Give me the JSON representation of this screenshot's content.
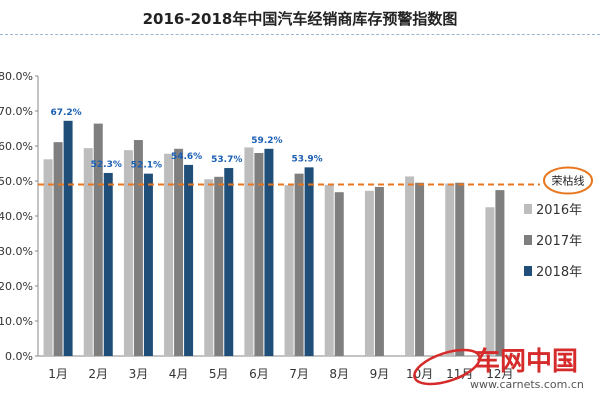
{
  "chart_data": {
    "type": "bar",
    "title": "2016-2018年中国汽车经销商库存预警指数图",
    "categories": [
      "1月",
      "2月",
      "3月",
      "4月",
      "5月",
      "6月",
      "7月",
      "8月",
      "9月",
      "10月",
      "11月",
      "12月"
    ],
    "series": [
      {
        "name": "2016年",
        "color": "#bdbdbd",
        "values": [
          56.2,
          59.4,
          58.8,
          57.8,
          50.5,
          59.6,
          48.8,
          48.9,
          47.2,
          51.3,
          49.3,
          42.5
        ]
      },
      {
        "name": "2017年",
        "color": "#7f7f7f",
        "values": [
          61.1,
          66.4,
          61.7,
          59.2,
          51.2,
          58.0,
          52.1,
          46.8,
          48.3,
          49.5,
          49.5,
          47.4
        ]
      },
      {
        "name": "2018年",
        "color": "#1f4e79",
        "values": [
          67.2,
          52.3,
          52.1,
          54.6,
          53.7,
          59.2,
          53.9,
          null,
          null,
          null,
          null,
          null
        ]
      }
    ],
    "data_labels": [
      "67.2%",
      "52.3%",
      "52.1%",
      "54.6%",
      "53.7%",
      "59.2%",
      "53.9%"
    ],
    "y_ticks": [
      "0.0%",
      "10.0%",
      "20.0%",
      "30.0%",
      "40.0%",
      "50.0%",
      "60.0%",
      "70.0%",
      "80.0%"
    ],
    "ylim": [
      0,
      80
    ],
    "reference_line": {
      "label": "荣枯线",
      "value": 49,
      "color": "#e87722"
    },
    "legend_placement": "right",
    "grid": false
  },
  "watermark": {
    "text": "车网中国",
    "url": "www.carnets.com.cn"
  }
}
